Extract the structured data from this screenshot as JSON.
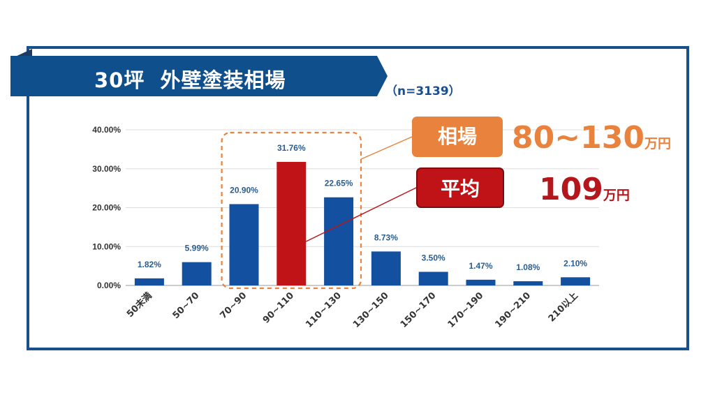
{
  "banner": {
    "title": "30坪  外壁塗装相場"
  },
  "sample_size": "（n=3139）",
  "range_label": "相場",
  "range_value": "80~130",
  "range_unit": "万円",
  "avg_label": "平均",
  "avg_value": "109",
  "avg_unit": "万円",
  "colors": {
    "bar": "#1350a0",
    "highlight": "#c01317",
    "accent_orange": "#e8823c",
    "frame": "#1a4f8e"
  },
  "chart_data": {
    "type": "bar",
    "title": "30坪  外壁塗装相場",
    "categories": [
      "50未満",
      "50~70",
      "70~90",
      "90~110",
      "110~130",
      "130~150",
      "150~170",
      "170~190",
      "190~210",
      "210以上"
    ],
    "values": [
      1.82,
      5.99,
      20.9,
      31.76,
      22.65,
      8.73,
      3.5,
      1.47,
      1.08,
      2.1
    ],
    "value_labels": [
      "1.82%",
      "5.99%",
      "20.90%",
      "31.76%",
      "22.65%",
      "8.73%",
      "3.50%",
      "1.47%",
      "1.08%",
      "2.10%"
    ],
    "highlight_index": 3,
    "range_box_indices": [
      2,
      4
    ],
    "ylim": [
      0,
      40
    ],
    "yticks": [
      0,
      10,
      20,
      30,
      40
    ],
    "ytick_labels": [
      "0.00%",
      "10.00%",
      "20.00%",
      "30.00%",
      "40.00%"
    ],
    "xlabel": "",
    "ylabel": "",
    "grid": true
  }
}
